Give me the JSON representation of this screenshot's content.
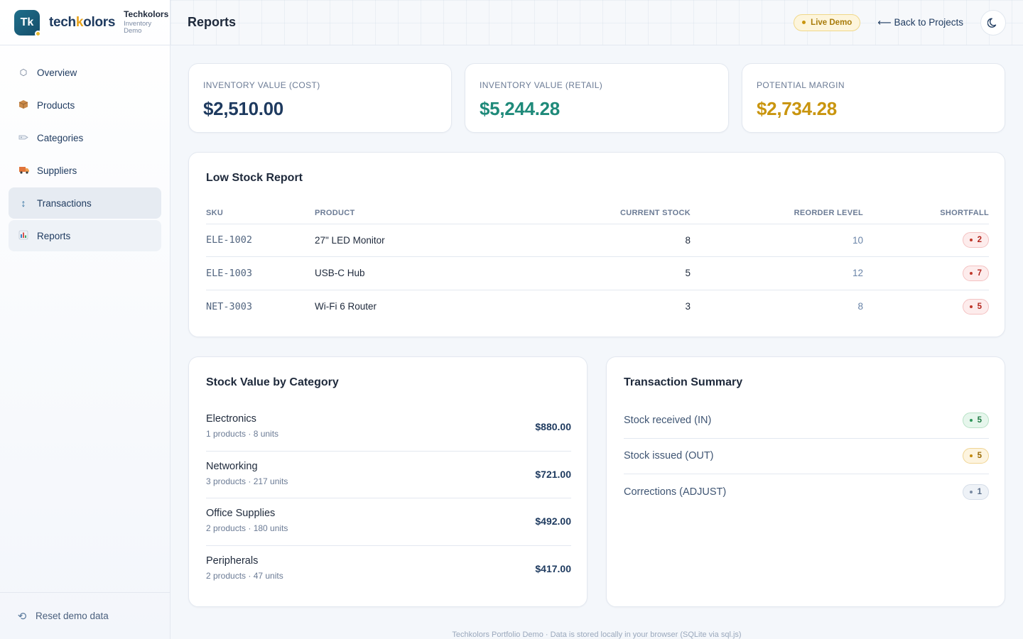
{
  "brand": {
    "logo_text": "Tk",
    "wordmark_before": "tech",
    "wordmark_k": "k",
    "wordmark_after": "olors",
    "name": "Techkolors",
    "subtitle": "Inventory Demo"
  },
  "sidebar": {
    "items": [
      {
        "label": "Overview",
        "icon": "hexagon-icon"
      },
      {
        "label": "Products",
        "icon": "box-icon"
      },
      {
        "label": "Categories",
        "icon": "tag-icon"
      },
      {
        "label": "Suppliers",
        "icon": "truck-icon"
      },
      {
        "label": "Transactions",
        "icon": "updown-arrows-icon"
      },
      {
        "label": "Reports",
        "icon": "bar-chart-icon"
      }
    ],
    "reset_label": "Reset demo data"
  },
  "header": {
    "title": "Reports",
    "live_badge": "Live Demo",
    "back_link": "⟵ Back to Projects"
  },
  "stats": [
    {
      "label": "INVENTORY VALUE (COST)",
      "value": "$2,510.00",
      "color": "#1e3a5f"
    },
    {
      "label": "INVENTORY VALUE (RETAIL)",
      "value": "$5,244.28",
      "color": "#1f8a7a"
    },
    {
      "label": "POTENTIAL MARGIN",
      "value": "$2,734.28",
      "color": "#c9950f"
    }
  ],
  "low_stock": {
    "title": "Low Stock Report",
    "columns": [
      "SKU",
      "PRODUCT",
      "CURRENT STOCK",
      "REORDER LEVEL",
      "SHORTFALL"
    ],
    "rows": [
      {
        "sku": "ELE-1002",
        "product": "27\" LED Monitor",
        "current": "8",
        "reorder": "10",
        "shortfall": "2"
      },
      {
        "sku": "ELE-1003",
        "product": "USB-C Hub",
        "current": "5",
        "reorder": "12",
        "shortfall": "7"
      },
      {
        "sku": "NET-3003",
        "product": "Wi-Fi 6 Router",
        "current": "3",
        "reorder": "8",
        "shortfall": "5"
      }
    ]
  },
  "stock_by_category": {
    "title": "Stock Value by Category",
    "rows": [
      {
        "name": "Electronics",
        "meta": "1 products · 8 units",
        "value": "$880.00"
      },
      {
        "name": "Networking",
        "meta": "3 products · 217 units",
        "value": "$721.00"
      },
      {
        "name": "Office Supplies",
        "meta": "2 products · 180 units",
        "value": "$492.00"
      },
      {
        "name": "Peripherals",
        "meta": "2 products · 47 units",
        "value": "$417.00"
      }
    ]
  },
  "transaction_summary": {
    "title": "Transaction Summary",
    "rows": [
      {
        "label": "Stock received (IN)",
        "count": "5",
        "tone": "green"
      },
      {
        "label": "Stock issued (OUT)",
        "count": "5",
        "tone": "amber"
      },
      {
        "label": "Corrections (ADJUST)",
        "count": "1",
        "tone": "gray"
      }
    ]
  },
  "footer": "Techkolors Portfolio Demo · Data is stored locally in your browser (SQLite via sql.js)"
}
